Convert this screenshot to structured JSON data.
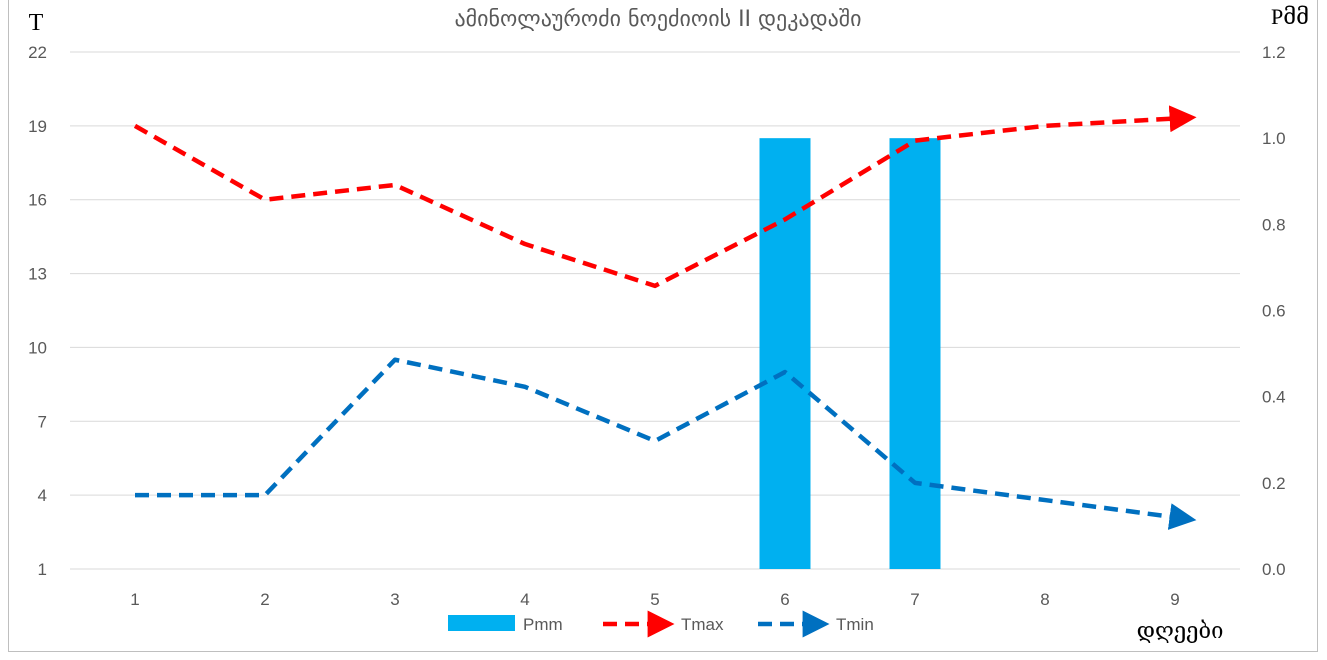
{
  "chart_data": {
    "type": "bar+line",
    "title": "ამინოლაუროძი ნოეძიოის II დეკადაში",
    "y_left_label": "T",
    "y_right_label": "Pმმ",
    "x_label": "დღეები",
    "categories": [
      "1",
      "2",
      "3",
      "4",
      "5",
      "6",
      "7",
      "8",
      "9"
    ],
    "y_left_ticks": [
      "22",
      "19",
      "16",
      "13",
      "10",
      "7",
      "4",
      "1"
    ],
    "y_left_range": [
      1,
      22
    ],
    "y_right_ticks": [
      "1.2",
      "1.0",
      "0.8",
      "0.6",
      "0.4",
      "0.2",
      "0.0"
    ],
    "y_right_range": [
      0,
      1.2
    ],
    "grid": true,
    "legend_position": "bottom",
    "series": [
      {
        "name": "Pmm",
        "type": "bar",
        "axis": "right",
        "color": "#00b0f0",
        "values": [
          0,
          0,
          0,
          0,
          0,
          1.0,
          1.0,
          0,
          0
        ]
      },
      {
        "name": "Tmax",
        "type": "line",
        "style": "dashed-arrow",
        "axis": "left",
        "color": "#ff0000",
        "values": [
          19.0,
          16.0,
          16.6,
          14.2,
          12.5,
          15.2,
          18.4,
          19.0,
          19.3
        ]
      },
      {
        "name": "Tmin",
        "type": "line",
        "style": "dashed-arrow",
        "axis": "left",
        "color": "#0070c0",
        "values": [
          4.0,
          4.0,
          9.5,
          8.4,
          6.2,
          9.0,
          4.5,
          3.8,
          3.1
        ]
      }
    ]
  }
}
